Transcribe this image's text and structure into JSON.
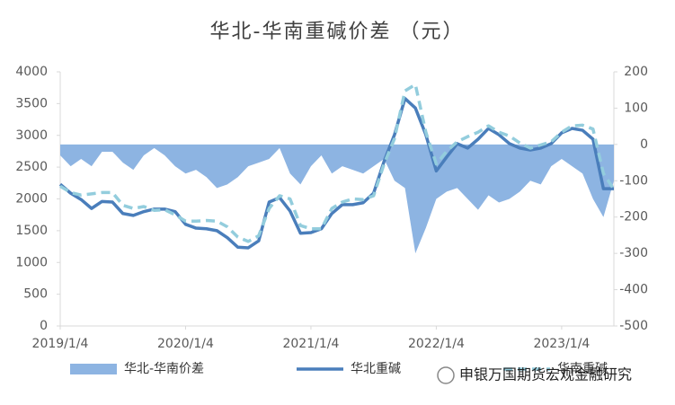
{
  "chart_data": {
    "type": "line",
    "title": "华北-华南重碱价差 （元）",
    "categories": [
      "2019/1/4",
      null,
      null,
      null,
      null,
      null,
      null,
      null,
      null,
      null,
      null,
      null,
      "2020/1/4",
      null,
      null,
      null,
      null,
      null,
      null,
      null,
      null,
      null,
      null,
      null,
      "2021/1/4",
      null,
      null,
      null,
      null,
      null,
      null,
      null,
      null,
      null,
      null,
      null,
      "2022/1/4",
      null,
      null,
      null,
      null,
      null,
      null,
      null,
      null,
      null,
      null,
      null,
      "2023/1/4",
      null,
      null,
      null,
      null,
      null
    ],
    "series": [
      {
        "name": "华北-华南价差",
        "type": "area",
        "axis": "y2",
        "color": "#8db4e2",
        "values": [
          -30,
          -60,
          -40,
          -60,
          -20,
          -20,
          -50,
          -70,
          -30,
          -10,
          -30,
          -60,
          -80,
          -70,
          -90,
          -120,
          -110,
          -90,
          -60,
          -50,
          -40,
          -10,
          -80,
          -110,
          -60,
          -30,
          -80,
          -60,
          -70,
          -80,
          -60,
          -40,
          -100,
          -120,
          -300,
          -230,
          -150,
          -130,
          -120,
          -150,
          -180,
          -140,
          -160,
          -150,
          -130,
          -100,
          -110,
          -60,
          -40,
          -60,
          -80,
          -150,
          -200,
          -100
        ]
      },
      {
        "name": "华北重碱",
        "type": "line",
        "color": "#4a7ebb",
        "values": [
          2230,
          2090,
          1990,
          1850,
          1960,
          1950,
          1770,
          1740,
          1800,
          1840,
          1840,
          1800,
          1600,
          1540,
          1530,
          1500,
          1390,
          1240,
          1230,
          1340,
          1950,
          2020,
          1810,
          1460,
          1470,
          1530,
          1770,
          1910,
          1910,
          1940,
          2090,
          2590,
          3010,
          3580,
          3430,
          3010,
          2440,
          2660,
          2870,
          2800,
          2940,
          3110,
          3010,
          2870,
          2800,
          2770,
          2800,
          2870,
          3040,
          3110,
          3080,
          2940,
          2160,
          2160
        ]
      },
      {
        "name": "华南重碱",
        "type": "line",
        "dashed": true,
        "color": "#93cddd",
        "values": [
          2200,
          2100,
          2060,
          2080,
          2100,
          2100,
          1900,
          1850,
          1880,
          1820,
          1830,
          1750,
          1650,
          1650,
          1660,
          1650,
          1560,
          1400,
          1330,
          1420,
          1850,
          2050,
          2000,
          1580,
          1530,
          1530,
          1850,
          1950,
          2000,
          1990,
          2050,
          2550,
          2950,
          3700,
          3800,
          3050,
          2550,
          2750,
          2900,
          2980,
          3050,
          3150,
          3050,
          2990,
          2880,
          2800,
          2850,
          2900,
          3050,
          3150,
          3160,
          3100,
          2400,
          2150
        ]
      }
    ],
    "ylim": [
      0,
      4000
    ],
    "yticks": [
      0,
      500,
      1000,
      1500,
      2000,
      2500,
      3000,
      3500,
      4000
    ],
    "y2lim": [
      -500,
      200
    ],
    "y2ticks": [
      -500,
      -400,
      -300,
      -200,
      -100,
      0,
      100,
      200
    ],
    "grid": false,
    "legend": "bottom",
    "annotation": "申银万国期货宏观金融研究"
  }
}
